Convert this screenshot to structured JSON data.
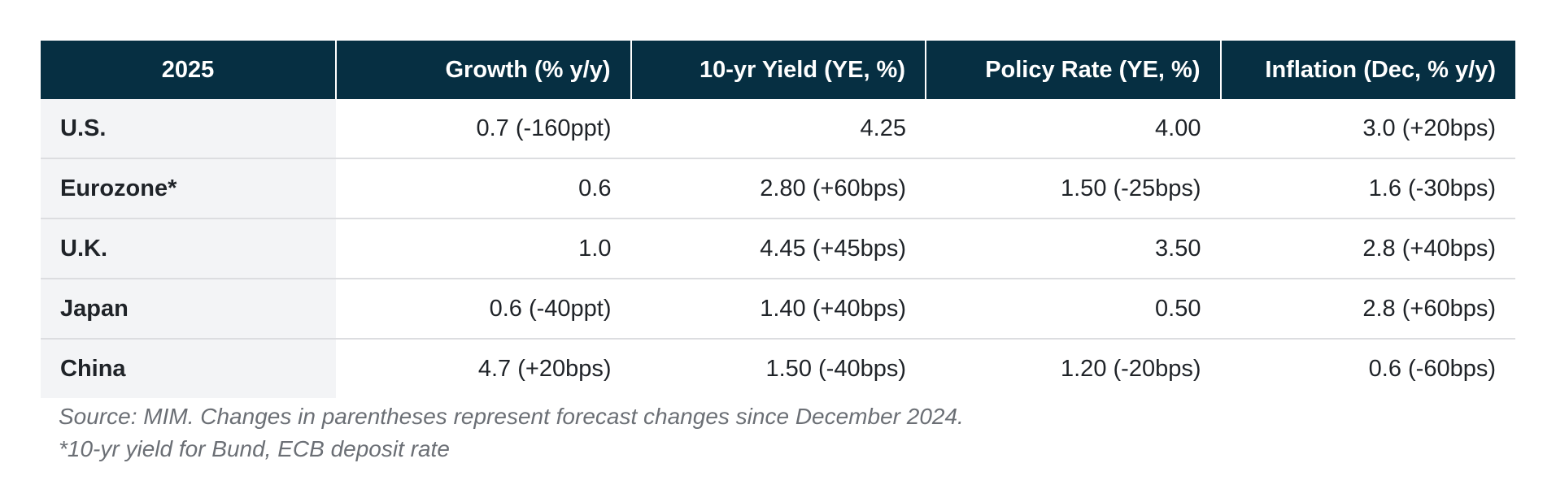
{
  "chart_data": {
    "type": "table",
    "columns": [
      "2025",
      "Growth (% y/y)",
      "10-yr Yield (YE, %)",
      "Policy Rate (YE, %)",
      "Inflation (Dec, % y/y)"
    ],
    "rows": [
      [
        "U.S.",
        "0.7 (-160ppt)",
        "4.25",
        "4.00",
        "3.0 (+20bps)"
      ],
      [
        "Eurozone*",
        "0.6",
        "2.80 (+60bps)",
        "1.50 (-25bps)",
        "1.6 (-30bps)"
      ],
      [
        "U.K.",
        "1.0",
        "4.45 (+45bps)",
        "3.50",
        "2.8 (+40bps)"
      ],
      [
        "Japan",
        "0.6 (-40ppt)",
        "1.40 (+40bps)",
        "0.50",
        "2.8 (+60bps)"
      ],
      [
        "China",
        "4.7 (+20bps)",
        "1.50 (-40bps)",
        "1.20 (-20bps)",
        "0.6 (-60bps)"
      ]
    ],
    "notes": [
      "Source: MIM. Changes in parentheses represent forecast changes since December 2024.",
      "*10-yr yield for Bund, ECB deposit rate"
    ]
  },
  "colors": {
    "header_bg": "#062f42",
    "header_text": "#ffffff",
    "label_col_bg": "#f3f4f6",
    "row_divider": "#dcdde0",
    "note_text": "#6b6f75"
  }
}
